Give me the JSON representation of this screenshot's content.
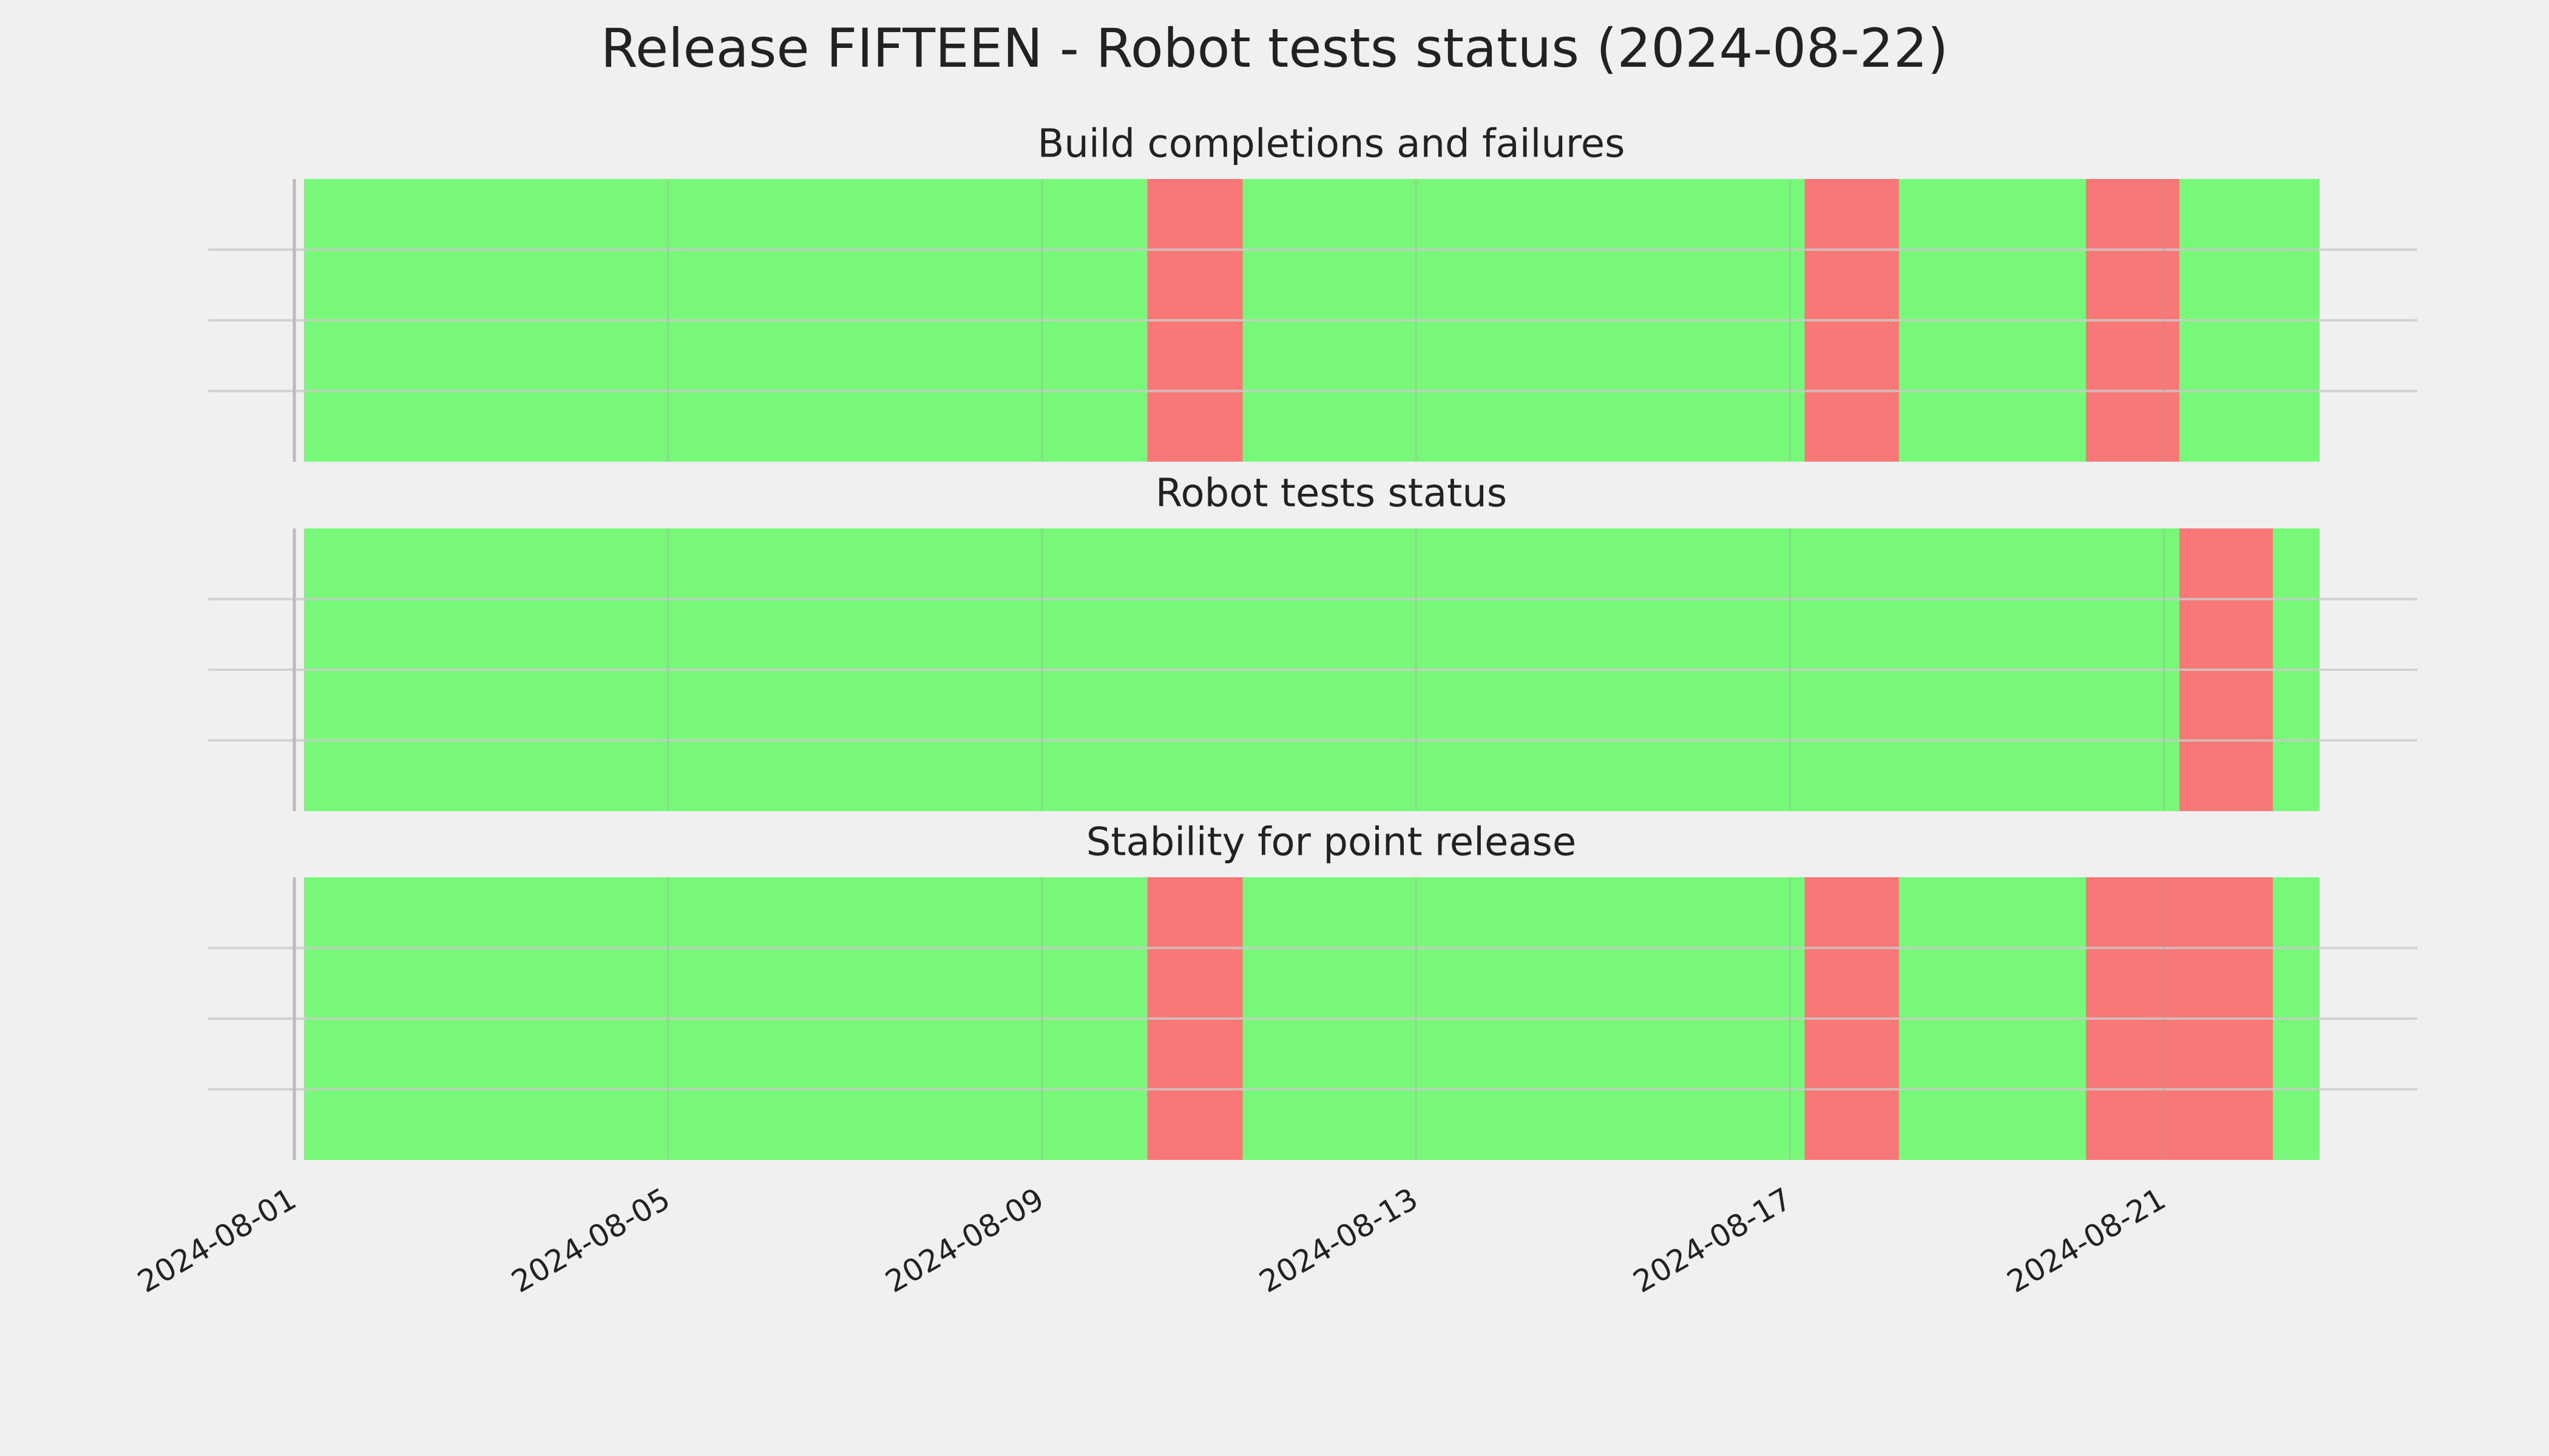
{
  "chart_data": {
    "type": "timeline",
    "title": "Release FIFTEEN - Robot tests status (2024-08-22)",
    "xlim": [
      "2024-08-01T00:00",
      "2024-08-22T16:00"
    ],
    "xticks": [
      "2024-08-01",
      "2024-08-05",
      "2024-08-09",
      "2024-08-13",
      "2024-08-17",
      "2024-08-21"
    ],
    "ylim": [
      0,
      1
    ],
    "yticks": [
      0.25,
      0.5,
      0.75
    ],
    "grid": true,
    "panels": [
      {
        "title": "Build completions and failures",
        "spans": [
          {
            "start": "2024-08-01T02:30",
            "end": "2024-08-10T03:00",
            "color": "#00ff00"
          },
          {
            "start": "2024-08-10T03:00",
            "end": "2024-08-11T03:30",
            "color": "#ff0000"
          },
          {
            "start": "2024-08-11T03:30",
            "end": "2024-08-17T03:45",
            "color": "#00ff00"
          },
          {
            "start": "2024-08-17T03:45",
            "end": "2024-08-18T04:00",
            "color": "#ff0000"
          },
          {
            "start": "2024-08-18T04:00",
            "end": "2024-08-20T04:00",
            "color": "#00ff00"
          },
          {
            "start": "2024-08-20T04:00",
            "end": "2024-08-21T04:00",
            "color": "#ff0000"
          },
          {
            "start": "2024-08-21T04:00",
            "end": "2024-08-22T16:00",
            "color": "#00ff00"
          }
        ]
      },
      {
        "title": "Robot tests status",
        "spans": [
          {
            "start": "2024-08-01T02:30",
            "end": "2024-08-21T04:00",
            "color": "#00ff00"
          },
          {
            "start": "2024-08-21T04:00",
            "end": "2024-08-22T04:00",
            "color": "#ff0000"
          },
          {
            "start": "2024-08-22T04:00",
            "end": "2024-08-22T16:00",
            "color": "#00ff00"
          }
        ]
      },
      {
        "title": "Stability for point release",
        "spans": [
          {
            "start": "2024-08-01T02:30",
            "end": "2024-08-10T03:00",
            "color": "#00ff00"
          },
          {
            "start": "2024-08-10T03:00",
            "end": "2024-08-11T03:30",
            "color": "#ff0000"
          },
          {
            "start": "2024-08-11T03:30",
            "end": "2024-08-17T03:45",
            "color": "#00ff00"
          },
          {
            "start": "2024-08-17T03:45",
            "end": "2024-08-18T04:00",
            "color": "#ff0000"
          },
          {
            "start": "2024-08-18T04:00",
            "end": "2024-08-20T04:00",
            "color": "#00ff00"
          },
          {
            "start": "2024-08-20T04:00",
            "end": "2024-08-22T04:00",
            "color": "#ff0000"
          },
          {
            "start": "2024-08-22T04:00",
            "end": "2024-08-22T16:00",
            "color": "#00ff00"
          }
        ]
      }
    ]
  }
}
